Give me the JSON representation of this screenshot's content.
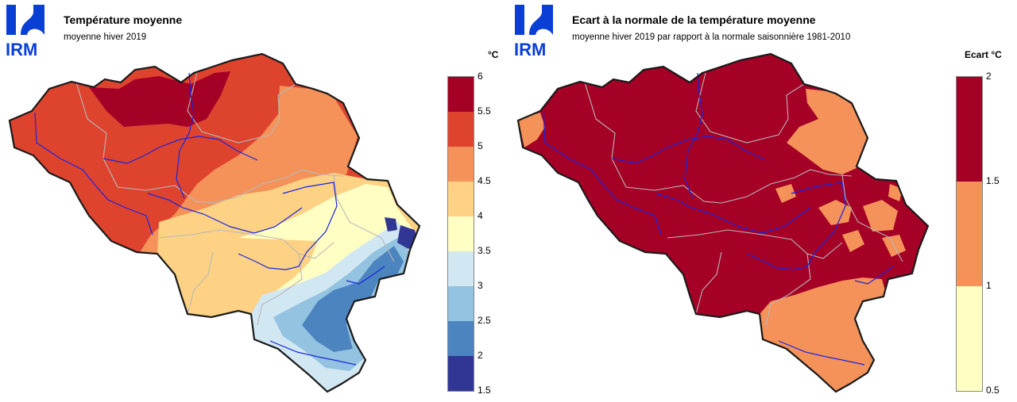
{
  "left": {
    "logo_text": "IRM",
    "title": "Température moyenne",
    "subtitle": "moyenne hiver 2019",
    "unit": "°C",
    "legend": {
      "ticks": [
        "6",
        "5.5",
        "5",
        "4.5",
        "4",
        "3.5",
        "3",
        "2.5",
        "2",
        "1.5"
      ],
      "colors": [
        "#a50026",
        "#d73027",
        "#f46d43",
        "#fdae61",
        "#fee090",
        "#ffffbf",
        "#e0f3f8",
        "#abd9e9",
        "#74add1",
        "#4575b4",
        "#313695"
      ],
      "bins": [
        "#a50026",
        "#de432e",
        "#f4925a",
        "#fdd284",
        "#ffffc4",
        "#d1e7f2",
        "#93c3e0",
        "#4c84bf",
        "#313695"
      ]
    }
  },
  "right": {
    "logo_text": "IRM",
    "title": "Ecart à la normale de la température moyenne",
    "subtitle": "moyenne hiver 2019 par rapport à la normale saisonnière 1981-2010",
    "unit": "Ecart  °C",
    "legend": {
      "ticks": [
        "2",
        "1.5",
        "1",
        "0.5"
      ],
      "bins": [
        "#a50026",
        "#f4925a",
        "#ffffc4"
      ]
    }
  },
  "colors": {
    "logo_blue": "#0a3fd6",
    "border": "#1a1a1a",
    "rivers": "#1a24e0",
    "provinces": "#b8b8b8"
  }
}
